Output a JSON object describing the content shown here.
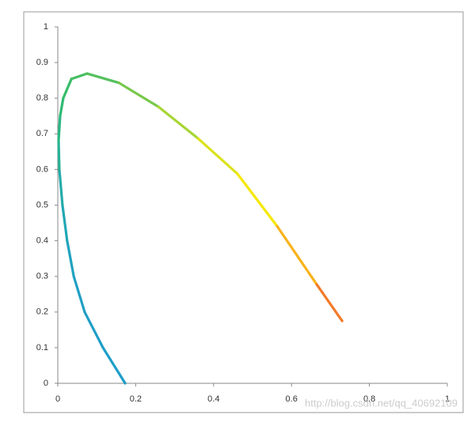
{
  "chart_data": {
    "type": "line",
    "x": [
      0.173,
      0.116,
      0.069,
      0.041,
      0.024,
      0.012,
      0.004,
      0.002,
      0.006,
      0.014,
      0.035,
      0.075,
      0.157,
      0.258,
      0.36,
      0.461,
      0.563,
      0.665,
      0.73
    ],
    "series": [
      {
        "values": [
          0,
          0.1,
          0.2,
          0.3,
          0.4,
          0.5,
          0.6,
          0.68,
          0.75,
          0.8,
          0.854,
          0.869,
          0.843,
          0.776,
          0.687,
          0.588,
          0.441,
          0.277,
          0.175
        ],
        "colors": [
          "#1e9ec8",
          "#1e9ec8",
          "#1fa0c4",
          "#20a3bf",
          "#22a7b5",
          "#24acaa",
          "#27b296",
          "#2ab784",
          "#2fbb72",
          "#37bd68",
          "#45be62",
          "#55c05c",
          "#78c84a",
          "#a8d535",
          "#dbe21a",
          "#f5e800",
          "#f8b21a",
          "#f37a28",
          "#ef4f2b"
        ]
      }
    ],
    "xlim": [
      0,
      1
    ],
    "ylim": [
      0,
      1
    ],
    "xticks": [
      0,
      0.2,
      0.4,
      0.6,
      0.8,
      1
    ],
    "yticks": [
      0,
      0.1,
      0.2,
      0.3,
      0.4,
      0.5,
      0.6,
      0.7,
      0.8,
      0.9,
      1
    ],
    "grid": false,
    "watermark": "http://blog.csdn.net/qq_40692109"
  }
}
